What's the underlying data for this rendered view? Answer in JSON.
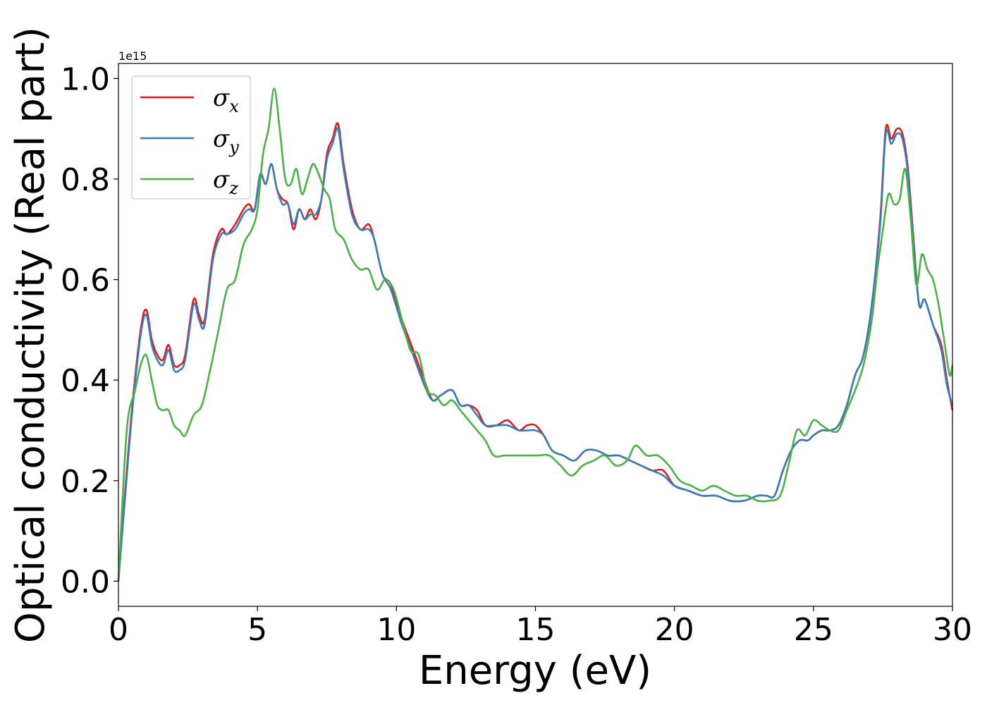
{
  "chart_data": {
    "type": "line",
    "xlabel": "Energy (eV)",
    "ylabel": "Optical conductivity (Real part)",
    "y_offset_text": "1e15",
    "y_scale": 1000000000000000.0,
    "xlim": [
      0,
      30
    ],
    "ylim": [
      -0.05,
      1.03
    ],
    "xticks": [
      0,
      5,
      10,
      15,
      20,
      25,
      30
    ],
    "xtick_labels": [
      "0",
      "5",
      "10",
      "15",
      "20",
      "25",
      "30"
    ],
    "yticks": [
      0.0,
      0.2,
      0.4,
      0.6,
      0.8,
      1.0
    ],
    "ytick_labels": [
      "0.0",
      "0.2",
      "0.4",
      "0.6",
      "0.8",
      "1.0"
    ],
    "grid": false,
    "legend_position": "upper-left",
    "series": [
      {
        "name": "σx",
        "legend": {
          "base": "σ",
          "sub": "x"
        },
        "color": "#e41a1c",
        "x": [
          0,
          0.2,
          0.5,
          0.8,
          1.0,
          1.2,
          1.4,
          1.6,
          1.8,
          2.0,
          2.2,
          2.4,
          2.7,
          2.9,
          3.1,
          3.4,
          3.7,
          3.9,
          4.2,
          4.5,
          4.7,
          4.9,
          5.1,
          5.3,
          5.5,
          5.7,
          5.9,
          6.1,
          6.3,
          6.5,
          6.7,
          6.9,
          7.1,
          7.3,
          7.5,
          7.7,
          7.9,
          8.1,
          8.4,
          8.7,
          9.0,
          9.2,
          9.5,
          9.8,
          10.2,
          10.6,
          11.0,
          11.3,
          11.6,
          12.0,
          12.3,
          12.6,
          12.9,
          13.2,
          13.6,
          14.0,
          14.4,
          14.7,
          15.0,
          15.3,
          15.6,
          16.0,
          16.4,
          16.8,
          17.2,
          17.6,
          18.0,
          18.4,
          18.8,
          19.2,
          19.6,
          20.0,
          20.5,
          21.0,
          21.5,
          22.0,
          22.5,
          23.0,
          23.3,
          23.6,
          23.9,
          24.2,
          24.5,
          24.8,
          25.0,
          25.3,
          25.6,
          25.9,
          26.2,
          26.5,
          26.8,
          27.1,
          27.4,
          27.6,
          27.8,
          28.0,
          28.2,
          28.4,
          28.6,
          28.8,
          29.0,
          29.3,
          29.6,
          29.8,
          30.0
        ],
        "y": [
          0.0,
          0.15,
          0.35,
          0.5,
          0.54,
          0.48,
          0.45,
          0.44,
          0.47,
          0.43,
          0.43,
          0.45,
          0.56,
          0.53,
          0.52,
          0.65,
          0.7,
          0.69,
          0.71,
          0.74,
          0.75,
          0.74,
          0.81,
          0.79,
          0.83,
          0.78,
          0.76,
          0.75,
          0.7,
          0.74,
          0.72,
          0.74,
          0.72,
          0.76,
          0.85,
          0.88,
          0.91,
          0.83,
          0.74,
          0.7,
          0.71,
          0.68,
          0.61,
          0.59,
          0.52,
          0.46,
          0.4,
          0.36,
          0.37,
          0.38,
          0.35,
          0.35,
          0.34,
          0.31,
          0.31,
          0.32,
          0.3,
          0.31,
          0.31,
          0.29,
          0.26,
          0.25,
          0.24,
          0.26,
          0.26,
          0.25,
          0.25,
          0.24,
          0.23,
          0.22,
          0.22,
          0.19,
          0.18,
          0.17,
          0.17,
          0.16,
          0.16,
          0.17,
          0.17,
          0.17,
          0.22,
          0.26,
          0.28,
          0.28,
          0.29,
          0.3,
          0.3,
          0.31,
          0.35,
          0.41,
          0.45,
          0.55,
          0.72,
          0.9,
          0.88,
          0.9,
          0.89,
          0.82,
          0.68,
          0.55,
          0.56,
          0.51,
          0.47,
          0.4,
          0.34
        ]
      },
      {
        "name": "σy",
        "legend": {
          "base": "σ",
          "sub": "y"
        },
        "color": "#377eb8",
        "x": [
          0,
          0.2,
          0.5,
          0.8,
          1.0,
          1.2,
          1.4,
          1.6,
          1.8,
          2.0,
          2.2,
          2.4,
          2.7,
          2.9,
          3.1,
          3.4,
          3.7,
          3.9,
          4.2,
          4.5,
          4.7,
          4.9,
          5.1,
          5.3,
          5.5,
          5.7,
          5.9,
          6.1,
          6.3,
          6.5,
          6.7,
          6.9,
          7.1,
          7.3,
          7.5,
          7.7,
          7.9,
          8.1,
          8.4,
          8.7,
          9.0,
          9.2,
          9.5,
          9.8,
          10.2,
          10.6,
          11.0,
          11.3,
          11.6,
          12.0,
          12.3,
          12.6,
          12.9,
          13.2,
          13.6,
          14.0,
          14.4,
          14.7,
          15.0,
          15.3,
          15.6,
          16.0,
          16.4,
          16.8,
          17.2,
          17.6,
          18.0,
          18.4,
          18.8,
          19.2,
          19.6,
          20.0,
          20.5,
          21.0,
          21.5,
          22.0,
          22.5,
          23.0,
          23.3,
          23.6,
          23.9,
          24.2,
          24.5,
          24.8,
          25.0,
          25.3,
          25.6,
          25.9,
          26.2,
          26.5,
          26.8,
          27.1,
          27.4,
          27.6,
          27.8,
          28.0,
          28.2,
          28.4,
          28.6,
          28.8,
          29.0,
          29.3,
          29.6,
          29.8,
          30.0
        ],
        "y": [
          0.0,
          0.14,
          0.34,
          0.49,
          0.53,
          0.47,
          0.44,
          0.43,
          0.46,
          0.42,
          0.42,
          0.44,
          0.55,
          0.52,
          0.51,
          0.64,
          0.69,
          0.69,
          0.7,
          0.73,
          0.74,
          0.74,
          0.81,
          0.79,
          0.83,
          0.78,
          0.75,
          0.75,
          0.71,
          0.74,
          0.72,
          0.73,
          0.73,
          0.76,
          0.84,
          0.87,
          0.9,
          0.82,
          0.73,
          0.7,
          0.7,
          0.68,
          0.61,
          0.58,
          0.51,
          0.45,
          0.39,
          0.36,
          0.37,
          0.38,
          0.35,
          0.35,
          0.33,
          0.31,
          0.31,
          0.31,
          0.3,
          0.3,
          0.3,
          0.29,
          0.26,
          0.25,
          0.24,
          0.26,
          0.26,
          0.25,
          0.25,
          0.24,
          0.23,
          0.22,
          0.21,
          0.19,
          0.18,
          0.17,
          0.17,
          0.16,
          0.16,
          0.17,
          0.17,
          0.17,
          0.22,
          0.26,
          0.28,
          0.28,
          0.29,
          0.3,
          0.3,
          0.31,
          0.35,
          0.41,
          0.45,
          0.55,
          0.71,
          0.89,
          0.87,
          0.89,
          0.88,
          0.81,
          0.67,
          0.55,
          0.56,
          0.51,
          0.46,
          0.39,
          0.35
        ]
      },
      {
        "name": "σz",
        "legend": {
          "base": "σ",
          "sub": "z"
        },
        "color": "#4daf4a",
        "x": [
          0,
          0.3,
          0.6,
          0.8,
          1.0,
          1.2,
          1.4,
          1.6,
          1.8,
          2.0,
          2.2,
          2.4,
          2.7,
          3.0,
          3.3,
          3.6,
          3.9,
          4.2,
          4.5,
          4.8,
          5.0,
          5.2,
          5.4,
          5.6,
          5.8,
          6.0,
          6.2,
          6.4,
          6.6,
          6.8,
          7.0,
          7.2,
          7.4,
          7.6,
          7.8,
          8.1,
          8.4,
          8.7,
          9.0,
          9.3,
          9.6,
          9.9,
          10.2,
          10.5,
          10.8,
          11.1,
          11.4,
          11.7,
          12.0,
          12.3,
          12.6,
          12.9,
          13.2,
          13.5,
          13.9,
          14.3,
          14.7,
          15.1,
          15.5,
          15.9,
          16.3,
          16.7,
          17.1,
          17.5,
          17.9,
          18.3,
          18.6,
          19.0,
          19.4,
          19.8,
          20.2,
          20.6,
          21.0,
          21.4,
          21.8,
          22.2,
          22.6,
          23.0,
          23.4,
          23.8,
          24.1,
          24.4,
          24.7,
          25.0,
          25.3,
          25.6,
          25.9,
          26.2,
          26.5,
          26.8,
          27.1,
          27.3,
          27.5,
          27.7,
          27.9,
          28.1,
          28.3,
          28.5,
          28.7,
          28.9,
          29.1,
          29.3,
          29.5,
          29.7,
          29.9,
          30.0
        ],
        "y": [
          0.0,
          0.3,
          0.38,
          0.43,
          0.45,
          0.4,
          0.35,
          0.34,
          0.34,
          0.31,
          0.3,
          0.29,
          0.33,
          0.35,
          0.42,
          0.5,
          0.58,
          0.6,
          0.67,
          0.7,
          0.74,
          0.85,
          0.9,
          0.98,
          0.9,
          0.8,
          0.79,
          0.82,
          0.77,
          0.8,
          0.83,
          0.81,
          0.78,
          0.76,
          0.7,
          0.68,
          0.64,
          0.62,
          0.62,
          0.58,
          0.6,
          0.58,
          0.52,
          0.46,
          0.45,
          0.38,
          0.37,
          0.35,
          0.36,
          0.34,
          0.32,
          0.3,
          0.28,
          0.25,
          0.25,
          0.25,
          0.25,
          0.25,
          0.25,
          0.23,
          0.21,
          0.23,
          0.24,
          0.25,
          0.23,
          0.24,
          0.27,
          0.25,
          0.25,
          0.23,
          0.2,
          0.19,
          0.18,
          0.19,
          0.18,
          0.17,
          0.17,
          0.16,
          0.16,
          0.17,
          0.23,
          0.3,
          0.29,
          0.32,
          0.31,
          0.3,
          0.3,
          0.34,
          0.38,
          0.43,
          0.52,
          0.62,
          0.7,
          0.77,
          0.75,
          0.76,
          0.82,
          0.72,
          0.59,
          0.65,
          0.62,
          0.6,
          0.55,
          0.48,
          0.41,
          0.43
        ]
      }
    ]
  }
}
